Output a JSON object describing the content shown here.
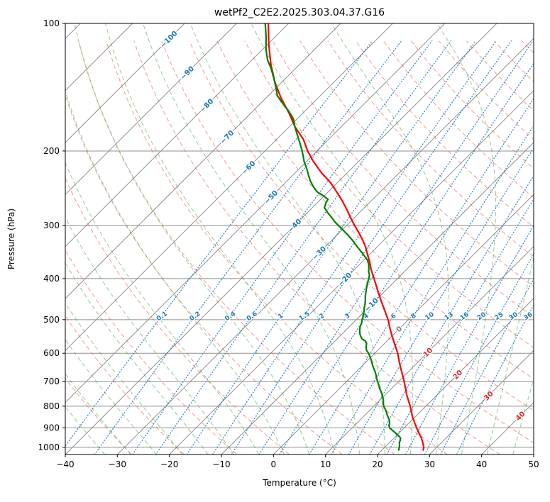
{
  "title": "wetPf2_C2E2.2025.303.04.37.G16",
  "axes": {
    "xlabel": "Temperature (°C)",
    "ylabel": "Pressure (hPa)",
    "x_ticks": [
      {
        "value": -40,
        "label": "−40"
      },
      {
        "value": -30,
        "label": "−30"
      },
      {
        "value": -20,
        "label": "−20"
      },
      {
        "value": -10,
        "label": "−10"
      },
      {
        "value": 0,
        "label": "0"
      },
      {
        "value": 10,
        "label": "10"
      },
      {
        "value": 20,
        "label": "20"
      },
      {
        "value": 30,
        "label": "30"
      },
      {
        "value": 40,
        "label": "40"
      },
      {
        "value": 50,
        "label": "50"
      }
    ],
    "y_ticks": [
      {
        "value": 100,
        "label": "100"
      },
      {
        "value": 200,
        "label": "200"
      },
      {
        "value": 300,
        "label": "300"
      },
      {
        "value": 400,
        "label": "400"
      },
      {
        "value": 500,
        "label": "500"
      },
      {
        "value": 600,
        "label": "600"
      },
      {
        "value": 700,
        "label": "700"
      },
      {
        "value": 800,
        "label": "800"
      },
      {
        "value": 900,
        "label": "900"
      },
      {
        "value": 1000,
        "label": "1000"
      }
    ]
  },
  "chart_data": {
    "type": "skewt_log_p",
    "title": "wetPf2_C2E2.2025.303.04.37.G16",
    "x_axis": {
      "label": "Temperature (°C)",
      "range": [
        -40,
        50
      ]
    },
    "y_axis": {
      "label": "Pressure (hPa)",
      "range": [
        1040,
        100
      ],
      "scale": "log"
    },
    "skew_slope": 1.0,
    "grid": true,
    "isotherms": {
      "start": -120,
      "end": 50,
      "step": 10,
      "color": "#8f8f8f"
    },
    "pressure_gridlines": {
      "start": 100,
      "end": 1000,
      "step": 100,
      "color": "#8f8f8f"
    },
    "dry_adiabats": {
      "theta_start": -30,
      "theta_end": 200,
      "step": 10,
      "color": "#e2574c",
      "style": "dashed"
    },
    "moist_adiabats": {
      "t0_start": -35,
      "t0_end": 45,
      "step": 5,
      "color": "#3f9b3f",
      "style": "dashed"
    },
    "mixing_ratio_lines": {
      "color": "#1f77b4",
      "style": "dotted",
      "label_pressure_hpa": 490,
      "values_g_per_kg": [
        0.1,
        0.2,
        0.4,
        0.6,
        1,
        1.5,
        2,
        3,
        4,
        6,
        8,
        10,
        13,
        16,
        20,
        25,
        30,
        36
      ],
      "labels": [
        "0.1",
        "0.2",
        "0.4",
        "0.6",
        "1",
        "1.5",
        "2",
        "3",
        "4",
        "6",
        "8",
        "10",
        "13",
        "16",
        "20",
        "25",
        "30",
        "36"
      ]
    },
    "isotherm_labels": [
      {
        "value": -100,
        "label": "−100",
        "color": "#1f77b4"
      },
      {
        "value": -90,
        "label": "−90",
        "color": "#1f77b4"
      },
      {
        "value": -80,
        "label": "−80",
        "color": "#1f77b4"
      },
      {
        "value": -70,
        "label": "−70",
        "color": "#1f77b4"
      },
      {
        "value": -60,
        "label": "−60",
        "color": "#1f77b4"
      },
      {
        "value": -50,
        "label": "−50",
        "color": "#1f77b4"
      },
      {
        "value": -40,
        "label": "−40",
        "color": "#1f77b4"
      },
      {
        "value": -30,
        "label": "−30",
        "color": "#1f77b4"
      },
      {
        "value": -20,
        "label": "−20",
        "color": "#1f77b4"
      },
      {
        "value": -10,
        "label": "−10",
        "color": "#1f77b4"
      },
      {
        "value": 0,
        "label": "0",
        "color": "#7f7f7f"
      },
      {
        "value": 10,
        "label": "10",
        "color": "#d62728"
      },
      {
        "value": 20,
        "label": "20",
        "color": "#d62728"
      },
      {
        "value": 30,
        "label": "30",
        "color": "#d62728"
      },
      {
        "value": 40,
        "label": "40",
        "color": "#d62728"
      }
    ],
    "series": [
      {
        "name": "temperature",
        "color": "#ff0000",
        "width": 2.2,
        "points": [
          [
            1015,
            27.9
          ],
          [
            1000,
            27.5
          ],
          [
            975,
            26.4
          ],
          [
            950,
            25.2
          ],
          [
            925,
            23.8
          ],
          [
            900,
            22.4
          ],
          [
            875,
            21.0
          ],
          [
            850,
            19.6
          ],
          [
            825,
            18.3
          ],
          [
            800,
            17.0
          ],
          [
            775,
            15.5
          ],
          [
            750,
            14.0
          ],
          [
            725,
            12.6
          ],
          [
            700,
            11.1
          ],
          [
            675,
            9.5
          ],
          [
            650,
            7.8
          ],
          [
            625,
            6.1
          ],
          [
            600,
            4.4
          ],
          [
            575,
            2.4
          ],
          [
            550,
            0.3
          ],
          [
            525,
            -1.8
          ],
          [
            500,
            -3.9
          ],
          [
            475,
            -6.4
          ],
          [
            450,
            -9.0
          ],
          [
            425,
            -11.7
          ],
          [
            400,
            -14.5
          ],
          [
            390,
            -15.7
          ],
          [
            380,
            -16.9
          ],
          [
            365,
            -18.6
          ],
          [
            350,
            -20.5
          ],
          [
            337,
            -22.2
          ],
          [
            325,
            -24.0
          ],
          [
            312,
            -26.2
          ],
          [
            300,
            -28.4
          ],
          [
            288,
            -30.6
          ],
          [
            275,
            -33.0
          ],
          [
            262,
            -35.6
          ],
          [
            250,
            -38.3
          ],
          [
            238,
            -41.2
          ],
          [
            225,
            -45.0
          ],
          [
            212,
            -48.6
          ],
          [
            200,
            -51.8
          ],
          [
            188,
            -54.8
          ],
          [
            175,
            -59.0
          ],
          [
            162,
            -62.9
          ],
          [
            150,
            -67.1
          ],
          [
            138,
            -71.2
          ],
          [
            125,
            -75.5
          ],
          [
            112,
            -79.8
          ],
          [
            100,
            -83.9
          ]
        ]
      },
      {
        "name": "dewpoint",
        "color": "#008000",
        "width": 2.2,
        "points": [
          [
            1015,
            23.2
          ],
          [
            1000,
            22.8
          ],
          [
            985,
            22.3
          ],
          [
            975,
            21.9
          ],
          [
            962,
            21.6
          ],
          [
            950,
            21.2
          ],
          [
            938,
            20.3
          ],
          [
            925,
            19.3
          ],
          [
            912,
            18.2
          ],
          [
            900,
            17.2
          ],
          [
            888,
            16.6
          ],
          [
            875,
            16.2
          ],
          [
            862,
            15.6
          ],
          [
            850,
            14.9
          ],
          [
            838,
            14.2
          ],
          [
            825,
            13.5
          ],
          [
            812,
            12.7
          ],
          [
            800,
            11.9
          ],
          [
            788,
            11.3
          ],
          [
            775,
            10.7
          ],
          [
            762,
            10.0
          ],
          [
            750,
            9.3
          ],
          [
            738,
            8.5
          ],
          [
            725,
            7.6
          ],
          [
            712,
            6.8
          ],
          [
            700,
            6.0
          ],
          [
            688,
            5.2
          ],
          [
            675,
            4.4
          ],
          [
            662,
            3.5
          ],
          [
            650,
            2.6
          ],
          [
            638,
            1.7
          ],
          [
            625,
            0.8
          ],
          [
            612,
            -0.2
          ],
          [
            600,
            -1.2
          ],
          [
            590,
            -2.2
          ],
          [
            580,
            -2.9
          ],
          [
            570,
            -3.4
          ],
          [
            562,
            -4.1
          ],
          [
            555,
            -5.2
          ],
          [
            548,
            -5.9
          ],
          [
            540,
            -6.6
          ],
          [
            530,
            -7.3
          ],
          [
            520,
            -7.9
          ],
          [
            510,
            -8.3
          ],
          [
            500,
            -8.9
          ],
          [
            490,
            -9.4
          ],
          [
            480,
            -10.0
          ],
          [
            470,
            -10.7
          ],
          [
            460,
            -11.3
          ],
          [
            450,
            -12.0
          ],
          [
            440,
            -12.8
          ],
          [
            430,
            -13.5
          ],
          [
            420,
            -14.2
          ],
          [
            410,
            -14.9
          ],
          [
            400,
            -15.5
          ],
          [
            392,
            -16.1
          ],
          [
            385,
            -16.9
          ],
          [
            378,
            -17.5
          ],
          [
            370,
            -18.3
          ],
          [
            362,
            -19.3
          ],
          [
            355,
            -20.5
          ],
          [
            348,
            -21.7
          ],
          [
            340,
            -23.2
          ],
          [
            332,
            -24.7
          ],
          [
            325,
            -26.0
          ],
          [
            318,
            -27.4
          ],
          [
            310,
            -29.2
          ],
          [
            302,
            -31.0
          ],
          [
            295,
            -32.7
          ],
          [
            288,
            -34.2
          ],
          [
            280,
            -36.0
          ],
          [
            272,
            -37.7
          ],
          [
            265,
            -38.3
          ],
          [
            260,
            -38.6
          ],
          [
            255,
            -40.2
          ],
          [
            250,
            -42.0
          ],
          [
            243,
            -43.8
          ],
          [
            235,
            -45.6
          ],
          [
            228,
            -47.0
          ],
          [
            220,
            -48.6
          ],
          [
            212,
            -50.4
          ],
          [
            205,
            -51.8
          ],
          [
            198,
            -53.3
          ],
          [
            190,
            -55.2
          ],
          [
            182,
            -57.2
          ],
          [
            175,
            -59.0
          ],
          [
            168,
            -60.7
          ],
          [
            160,
            -63.5
          ],
          [
            153,
            -66.3
          ],
          [
            148,
            -68.3
          ],
          [
            142,
            -70.0
          ],
          [
            135,
            -72.2
          ],
          [
            128,
            -74.6
          ],
          [
            122,
            -77.0
          ],
          [
            115,
            -79.4
          ],
          [
            108,
            -81.6
          ],
          [
            100,
            -84.5
          ]
        ]
      }
    ]
  }
}
